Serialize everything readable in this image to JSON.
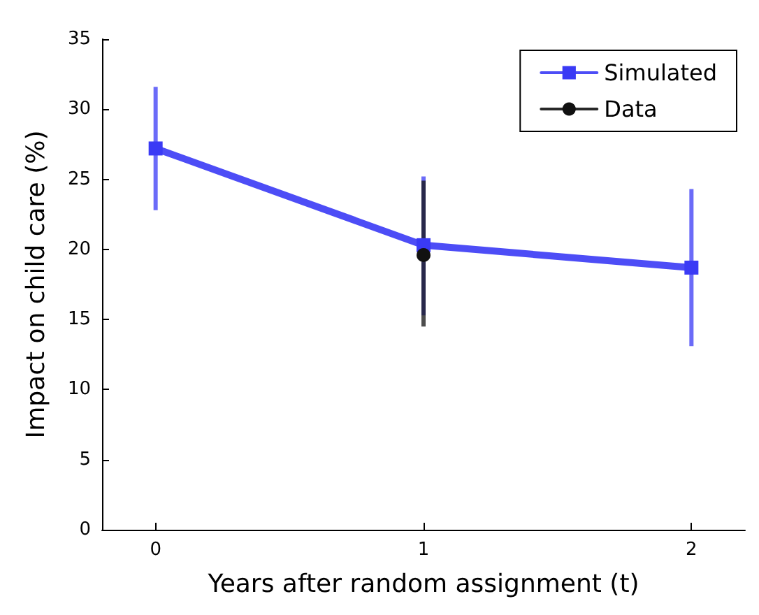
{
  "chart_data": {
    "type": "line",
    "xlabel": "Years after random assignment (t)",
    "ylabel": "Impact on child care (%)",
    "xlim": [
      -0.2,
      2.2
    ],
    "xticks": [
      0,
      1,
      2
    ],
    "ylim": [
      0,
      35
    ],
    "yticks": [
      0,
      5,
      10,
      15,
      20,
      25,
      30,
      35
    ],
    "legend": "top right",
    "grid": false,
    "series": [
      {
        "name": "Simulated",
        "color": "#3a3af5",
        "marker": "square",
        "x": [
          0,
          1,
          2
        ],
        "values": [
          27.2,
          20.3,
          18.7
        ],
        "errors": [
          [
            22.8,
            31.6
          ],
          [
            15.3,
            25.2
          ],
          [
            13.1,
            24.3
          ]
        ]
      },
      {
        "name": "Data",
        "color": "#111111",
        "marker": "circle",
        "x": [
          1
        ],
        "values": [
          19.6
        ],
        "errors": [
          [
            14.5,
            24.9
          ]
        ]
      }
    ]
  }
}
